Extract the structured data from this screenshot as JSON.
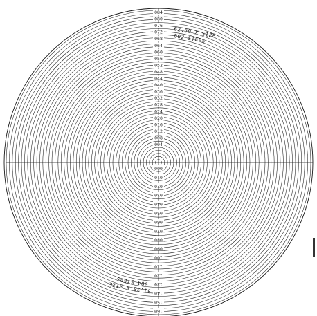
{
  "rings": {
    "top_labels": [
      "084",
      "080",
      "076",
      "072",
      "068",
      "064",
      "060",
      "056",
      "052",
      "048",
      "044",
      "040",
      "036",
      "032",
      "028",
      "024",
      "020",
      "016",
      "012",
      "008",
      "004"
    ],
    "bottom_labels": [
      "000",
      "010",
      "020",
      "030",
      "040",
      "050",
      "060",
      "070",
      "080",
      "090",
      "100",
      "110",
      "120",
      "130",
      "140",
      "150",
      "160"
    ]
  },
  "notes": {
    "upper_line1": "62.50 X SIZE",
    "upper_line2": "002  STEPS",
    "lower_line1": "31.25 X SIZE",
    "lower_line2": "004  STEPS"
  }
}
